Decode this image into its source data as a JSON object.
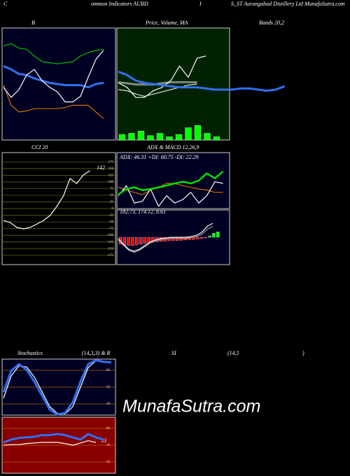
{
  "header": {
    "parts": [
      "C",
      "ommon Indicators AURD",
      "I",
      "S_ST Aurangabad Distillery Ltd MunafaSutra.com"
    ]
  },
  "watermark": "MunafaSutra.com",
  "chart_data": [
    {
      "type": "line",
      "title": "B",
      "background": "#000022",
      "ylim": [
        0,
        100
      ],
      "series": [
        {
          "color": "#00c000",
          "values": [
            84,
            86,
            82,
            81,
            75,
            70,
            69,
            68,
            69,
            70,
            75,
            78,
            80,
            81
          ]
        },
        {
          "color": "#d07000",
          "values": [
            49,
            31,
            25,
            26,
            28,
            28,
            28,
            28,
            29,
            31,
            31,
            31,
            25,
            19
          ]
        },
        {
          "color": "#3070f0",
          "values": [
            66,
            63,
            59,
            58,
            55,
            53,
            51,
            50,
            49,
            49,
            49,
            47,
            50,
            51
          ]
        },
        {
          "color": "#ffffff",
          "values": [
            47,
            38,
            45,
            58,
            63,
            53,
            47,
            43,
            34,
            34,
            39,
            56,
            72,
            80
          ]
        }
      ]
    },
    {
      "type": "line",
      "title": "Price, Volume, MA",
      "annotations": [
        "Bands 20,2"
      ],
      "background": "#002200",
      "ylim": [
        0,
        100
      ],
      "series": [
        {
          "type": "bar",
          "color": "#00ff00",
          "values": [
            5,
            6,
            8,
            4,
            6,
            3,
            5,
            11,
            13,
            6,
            3
          ]
        },
        {
          "color": "#888888",
          "values": [
            51,
            50,
            49,
            49,
            49,
            50,
            51,
            51,
            51,
            51
          ]
        },
        {
          "color": "#bbbbbb",
          "values": [
            52,
            51,
            50,
            50,
            50,
            51,
            52,
            52,
            52,
            52
          ]
        },
        {
          "color": "#dddddd",
          "values": [
            45,
            44,
            41,
            39,
            41,
            43,
            45,
            47,
            49,
            50
          ]
        },
        {
          "color": "#ffffff",
          "values": [
            51,
            47,
            38,
            38,
            44,
            47,
            53,
            66,
            56,
            73,
            75
          ]
        },
        {
          "color": "#3070f0",
          "values": [
            61,
            58,
            53,
            51,
            50,
            49,
            48,
            47,
            47,
            47,
            46,
            45,
            45,
            45,
            46,
            46,
            45,
            44,
            45,
            48
          ]
        }
      ]
    },
    {
      "type": "line",
      "title": "CCI 20",
      "annotations": [
        "142"
      ],
      "background": "#000000",
      "ylim": [
        -210,
        210
      ],
      "yticks": [
        175,
        150,
        125,
        100,
        75,
        50,
        25,
        0,
        -25,
        -50,
        -75,
        -100,
        -125,
        -150,
        -175
      ],
      "grid": true,
      "grid_color": "#6b6b10",
      "series": [
        {
          "color": "#ffffff",
          "values": [
            -45,
            -52,
            -71,
            -76,
            -71,
            -58,
            -45,
            -26,
            8,
            47,
            113,
            94,
            126,
            142
          ]
        }
      ]
    },
    {
      "type": "line",
      "title": "ADX  & MACD 12,26,9",
      "subtitle": "ADX: 46.31 +DI: 60.75 -DI: 22.29",
      "background": "#000022",
      "ylim": [
        0,
        100
      ],
      "series": [
        {
          "color": "#d07000",
          "values": [
            38,
            33,
            29,
            25,
            33,
            38,
            45,
            45,
            41,
            38,
            35,
            33,
            29,
            29
          ]
        },
        {
          "color": "#ffffff",
          "values": [
            23,
            41,
            10,
            13,
            35,
            4,
            23,
            10,
            16,
            29,
            10,
            23,
            48,
            45
          ]
        },
        {
          "color": "#00e000",
          "values": [
            25,
            35,
            38,
            33,
            35,
            38,
            41,
            45,
            48,
            45,
            50,
            63,
            54,
            66
          ]
        }
      ]
    },
    {
      "type": "line",
      "subtitle": "182.73, 174.12, 8.61",
      "background": "#000022",
      "ylim": [
        -100,
        100
      ],
      "series": [
        {
          "type": "bar",
          "color": "#ff0000",
          "positive_color": "#00ff00",
          "values": [
            -25,
            -28,
            -30,
            -30,
            -28,
            -25,
            -22,
            -20,
            -18,
            -16,
            -15,
            -14,
            -13,
            -12,
            -12,
            -11,
            -10,
            -9,
            -8,
            -6,
            -4,
            -2,
            5,
            15,
            20
          ]
        },
        {
          "color": "#999999",
          "values": [
            -10,
            -30,
            -48,
            -55,
            -48,
            -35,
            -22,
            -14,
            -9,
            -7,
            -4,
            -4,
            -4,
            -4,
            -1,
            3,
            12,
            30,
            40
          ]
        },
        {
          "color": "#ffffff",
          "values": [
            -5,
            -26,
            -44,
            -51,
            -44,
            -31,
            -18,
            -10,
            -5,
            -3,
            0,
            0,
            0,
            0,
            3,
            8,
            20,
            41,
            51
          ]
        }
      ]
    },
    {
      "type": "line",
      "title": "Stochastics",
      "annotations": [
        "(14,3,3) & R",
        "SI",
        "(14,5",
        ")"
      ],
      "background": "#000022",
      "ylim": [
        0,
        100
      ],
      "yticks": [
        80,
        50,
        20
      ],
      "grid": true,
      "grid_color": "#b06000",
      "series": [
        {
          "color": "#ffffff",
          "values": [
            30,
            70,
            88,
            86,
            68,
            42,
            15,
            3,
            2,
            15,
            50,
            85,
            97,
            96,
            95
          ]
        },
        {
          "color": "#3070f0",
          "values": [
            41,
            79,
            91,
            81,
            60,
            35,
            10,
            1,
            4,
            23,
            60,
            91,
            98,
            95,
            94
          ]
        }
      ]
    },
    {
      "type": "line",
      "annotations": [
        "53"
      ],
      "background": "#880000",
      "ylim": [
        0,
        100
      ],
      "yticks": [
        80,
        50,
        20
      ],
      "grid": true,
      "grid_color": "#b06000",
      "series": [
        {
          "color": "#ffffff",
          "values": [
            50,
            51,
            51,
            53,
            54,
            55,
            55,
            55,
            53,
            50,
            54,
            58,
            55
          ]
        },
        {
          "color": "#3070f0",
          "values": [
            55,
            60,
            63,
            64,
            65,
            68,
            68,
            70,
            68,
            64,
            60,
            70,
            64,
            60
          ]
        }
      ]
    }
  ]
}
